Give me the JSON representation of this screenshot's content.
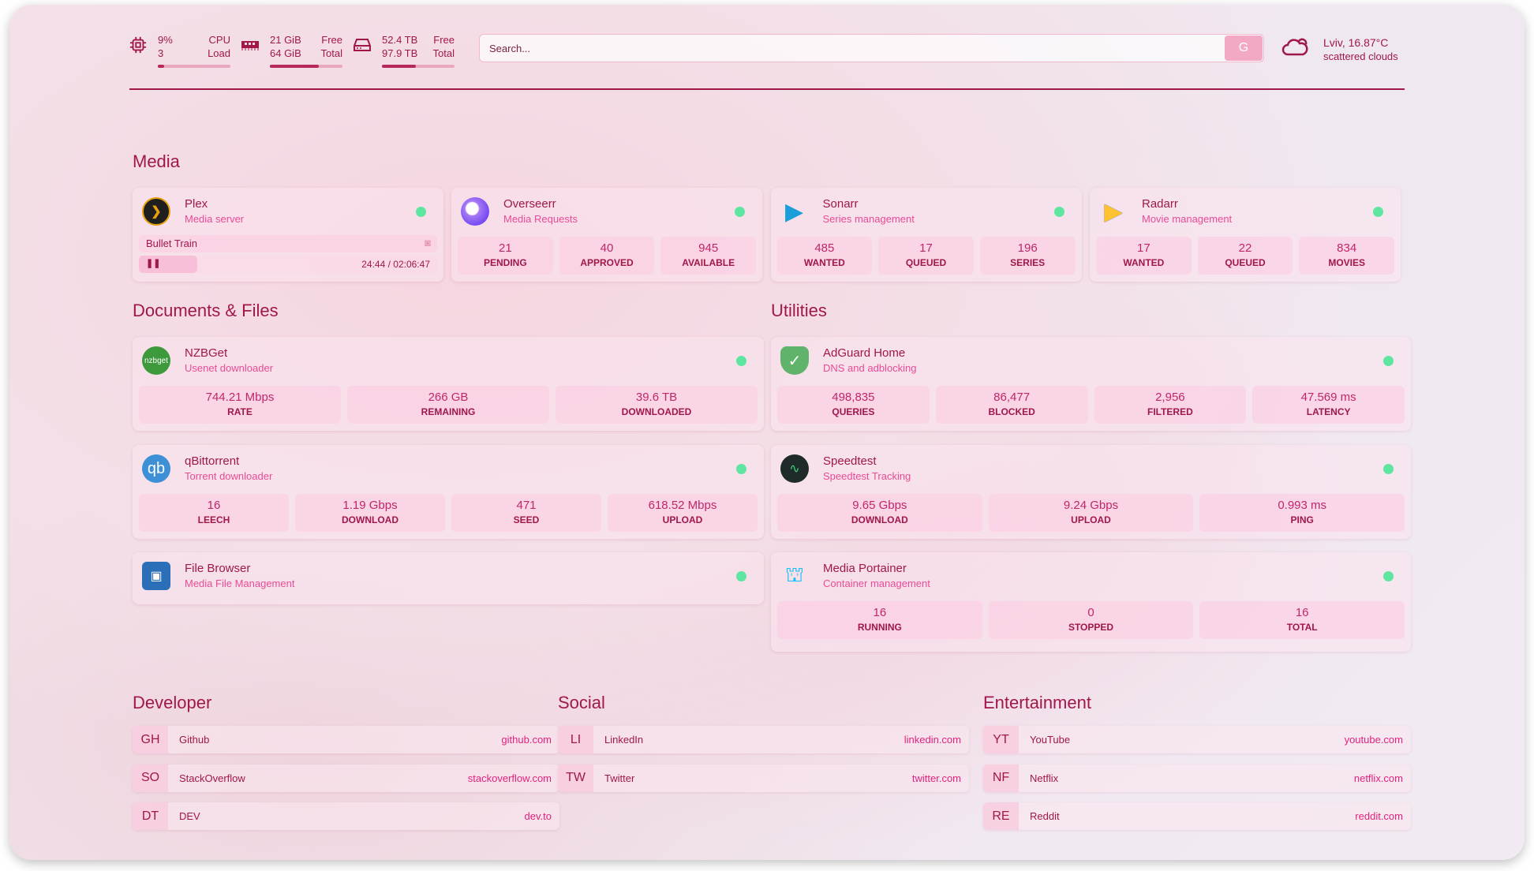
{
  "header": {
    "cpu": {
      "value": "9%",
      "cores": "3",
      "label1": "CPU",
      "label2": "Load",
      "fill": 0.09
    },
    "memory": {
      "free": "21 GiB",
      "total": "64 GiB",
      "label1": "Free",
      "label2": "Total",
      "fill": 0.67
    },
    "disk": {
      "free": "52.4 TB",
      "total": "97.9 TB",
      "label1": "Free",
      "label2": "Total",
      "fill": 0.47
    },
    "search": {
      "placeholder": "Search...",
      "button": "G"
    },
    "weather": {
      "location": "Lviv, 16.87°C",
      "description": "scattered clouds"
    }
  },
  "colors": {
    "accent": "#a0174a",
    "subtitle": "#e94b97",
    "status_online": "#5ee6a0"
  },
  "media": {
    "title": "Media",
    "plex": {
      "name": "Plex",
      "desc": "Media server",
      "now_playing": "Bullet Train",
      "time": "24:44 / 02:06:47",
      "progress": 0.195
    },
    "cards": [
      {
        "name": "Overseerr",
        "desc": "Media Requests",
        "stats": [
          {
            "v": "21",
            "k": "PENDING"
          },
          {
            "v": "40",
            "k": "APPROVED"
          },
          {
            "v": "945",
            "k": "AVAILABLE"
          }
        ]
      },
      {
        "name": "Sonarr",
        "desc": "Series management",
        "stats": [
          {
            "v": "485",
            "k": "WANTED"
          },
          {
            "v": "17",
            "k": "QUEUED"
          },
          {
            "v": "196",
            "k": "SERIES"
          }
        ]
      },
      {
        "name": "Radarr",
        "desc": "Movie management",
        "stats": [
          {
            "v": "17",
            "k": "WANTED"
          },
          {
            "v": "22",
            "k": "QUEUED"
          },
          {
            "v": "834",
            "k": "MOVIES"
          }
        ]
      }
    ]
  },
  "documents": {
    "title": "Documents & Files",
    "nzbget": {
      "name": "NZBGet",
      "desc": "Usenet downloader",
      "stats": [
        {
          "v": "744.21 Mbps",
          "k": "RATE"
        },
        {
          "v": "266 GB",
          "k": "REMAINING"
        },
        {
          "v": "39.6 TB",
          "k": "DOWNLOADED"
        }
      ]
    },
    "qbittorrent": {
      "name": "qBittorrent",
      "desc": "Torrent downloader",
      "stats": [
        {
          "v": "16",
          "k": "LEECH"
        },
        {
          "v": "1.19 Gbps",
          "k": "DOWNLOAD"
        },
        {
          "v": "471",
          "k": "SEED"
        },
        {
          "v": "618.52 Mbps",
          "k": "UPLOAD"
        }
      ]
    },
    "filebrowser": {
      "name": "File Browser",
      "desc": "Media File Management"
    }
  },
  "utilities": {
    "title": "Utilities",
    "adguard": {
      "name": "AdGuard Home",
      "desc": "DNS and adblocking",
      "stats": [
        {
          "v": "498,835",
          "k": "QUERIES"
        },
        {
          "v": "86,477",
          "k": "BLOCKED"
        },
        {
          "v": "2,956",
          "k": "FILTERED"
        },
        {
          "v": "47.569 ms",
          "k": "LATENCY"
        }
      ]
    },
    "speedtest": {
      "name": "Speedtest",
      "desc": "Speedtest Tracking",
      "stats": [
        {
          "v": "9.65 Gbps",
          "k": "DOWNLOAD"
        },
        {
          "v": "9.24 Gbps",
          "k": "UPLOAD"
        },
        {
          "v": "0.993 ms",
          "k": "PING"
        }
      ]
    },
    "portainer": {
      "name": "Media Portainer",
      "desc": "Container management",
      "stats": [
        {
          "v": "16",
          "k": "RUNNING"
        },
        {
          "v": "0",
          "k": "STOPPED"
        },
        {
          "v": "16",
          "k": "TOTAL"
        }
      ]
    }
  },
  "bookmarks": [
    {
      "title": "Developer",
      "items": [
        {
          "abbr": "GH",
          "name": "Github",
          "url": "github.com"
        },
        {
          "abbr": "SO",
          "name": "StackOverflow",
          "url": "stackoverflow.com"
        },
        {
          "abbr": "DT",
          "name": "DEV",
          "url": "dev.to"
        }
      ]
    },
    {
      "title": "Social",
      "items": [
        {
          "abbr": "LI",
          "name": "LinkedIn",
          "url": "linkedin.com"
        },
        {
          "abbr": "TW",
          "name": "Twitter",
          "url": "twitter.com"
        }
      ]
    },
    {
      "title": "Entertainment",
      "items": [
        {
          "abbr": "YT",
          "name": "YouTube",
          "url": "youtube.com"
        },
        {
          "abbr": "NF",
          "name": "Netflix",
          "url": "netflix.com"
        },
        {
          "abbr": "RE",
          "name": "Reddit",
          "url": "reddit.com"
        }
      ]
    }
  ]
}
